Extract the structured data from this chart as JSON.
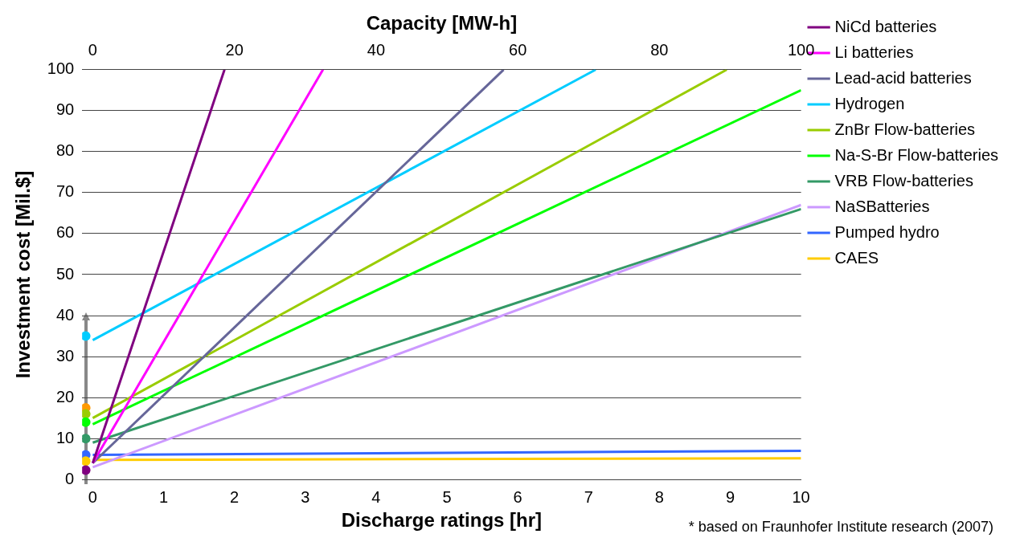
{
  "chart_data": {
    "type": "line",
    "xlabel": "Discharge ratings [hr]",
    "ylabel": "Investment cost [Mil.$]",
    "x2label": "Capacity [MW-h]",
    "xlim": [
      -0.15,
      10
    ],
    "xticks": [
      0,
      1,
      2,
      3,
      4,
      5,
      6,
      7,
      8,
      9,
      10
    ],
    "x2lim": [
      -1.5,
      100
    ],
    "x2ticks": [
      0,
      20,
      40,
      60,
      80,
      100
    ],
    "ylim": [
      0,
      100
    ],
    "yticks": [
      0,
      10,
      20,
      30,
      40,
      50,
      60,
      70,
      80,
      90,
      100
    ],
    "grid": "y",
    "legend": "right",
    "marker": "none",
    "line_style": "solid",
    "annotations": [
      "* based on Fraunhofer Institute research (2007)"
    ],
    "series": [
      {
        "name": "NiCd batteries",
        "color": "#800080",
        "x": [
          0,
          1.86
        ],
        "values": [
          4,
          100
        ]
      },
      {
        "name": "Li batteries",
        "color": "#ff00ff",
        "x": [
          0,
          3.25
        ],
        "values": [
          4,
          100
        ]
      },
      {
        "name": "Lead-acid batteries",
        "color": "#666699",
        "x": [
          0,
          5.8
        ],
        "values": [
          4,
          100
        ]
      },
      {
        "name": "Hydrogen",
        "color": "#00ccff",
        "x": [
          0,
          7.1
        ],
        "values": [
          34,
          100
        ]
      },
      {
        "name": "ZnBr Flow-batteries",
        "color": "#99cc00",
        "x": [
          0,
          8.95
        ],
        "values": [
          15,
          100
        ]
      },
      {
        "name": "Na-S-Br Flow-batteries",
        "color": "#00ff00",
        "x": [
          0,
          10
        ],
        "values": [
          13.5,
          95
        ]
      },
      {
        "name": "VRB Flow-batteries",
        "color": "#339966",
        "x": [
          0,
          10
        ],
        "values": [
          9,
          66
        ]
      },
      {
        "name": "NaSBatteries",
        "color": "#cc99ff",
        "x": [
          0,
          10
        ],
        "values": [
          3,
          67
        ]
      },
      {
        "name": "Pumped hydro",
        "color": "#3366ff",
        "x": [
          0,
          10
        ],
        "values": [
          6,
          7
        ]
      },
      {
        "name": "CAES",
        "color": "#ffcc00",
        "x": [
          0,
          10
        ],
        "values": [
          4.8,
          5.2
        ]
      },
      {
        "type": "scatter",
        "marker": "circle",
        "x": [
          -0.1,
          -0.1,
          -0.1,
          -0.1,
          -0.1,
          -0.1,
          -0.1,
          -0.1
        ],
        "values": [
          35,
          17.5,
          16,
          14,
          10,
          6,
          4.5,
          2.3
        ],
        "colors": [
          "#00ccff",
          "#ff9900",
          "#99cc00",
          "#00ff00",
          "#339966",
          "#3366ff",
          "#ffcc00",
          "#800080"
        ]
      }
    ]
  }
}
